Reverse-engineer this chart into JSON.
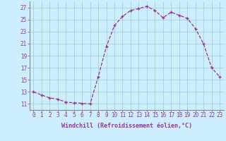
{
  "x": [
    0,
    1,
    2,
    3,
    4,
    5,
    6,
    7,
    8,
    9,
    10,
    11,
    12,
    13,
    14,
    15,
    16,
    17,
    18,
    19,
    20,
    21,
    22,
    23
  ],
  "y": [
    13,
    12.5,
    12,
    11.8,
    11.3,
    11.2,
    11.1,
    11.0,
    15.5,
    20.5,
    24.0,
    25.5,
    26.5,
    26.8,
    27.2,
    26.5,
    25.3,
    26.2,
    25.7,
    25.2,
    23.5,
    21.0,
    17.0,
    15.5
  ],
  "line_color": "#993399",
  "marker": "+",
  "marker_color": "#993399",
  "bg_color": "#cceeff",
  "grid_color": "#99cccc",
  "xlabel": "Windchill (Refroidissement éolien,°C)",
  "xlabel_color": "#993399",
  "tick_color": "#993399",
  "label_color": "#993399",
  "xlim": [
    -0.5,
    23.5
  ],
  "ylim": [
    10.0,
    28.0
  ],
  "yticks": [
    11,
    13,
    15,
    17,
    19,
    21,
    23,
    25,
    27
  ],
  "xticks": [
    0,
    1,
    2,
    3,
    4,
    5,
    6,
    7,
    8,
    9,
    10,
    11,
    12,
    13,
    14,
    15,
    16,
    17,
    18,
    19,
    20,
    21,
    22,
    23
  ],
  "xtick_labels": [
    "0",
    "1",
    "2",
    "3",
    "4",
    "5",
    "6",
    "7",
    "8",
    "9",
    "10",
    "11",
    "12",
    "13",
    "14",
    "15",
    "16",
    "17",
    "18",
    "19",
    "20",
    "21",
    "22",
    "23"
  ],
  "tick_fontsize": 5.5,
  "xlabel_fontsize": 6.0,
  "linewidth": 0.9,
  "markersize": 3.5
}
